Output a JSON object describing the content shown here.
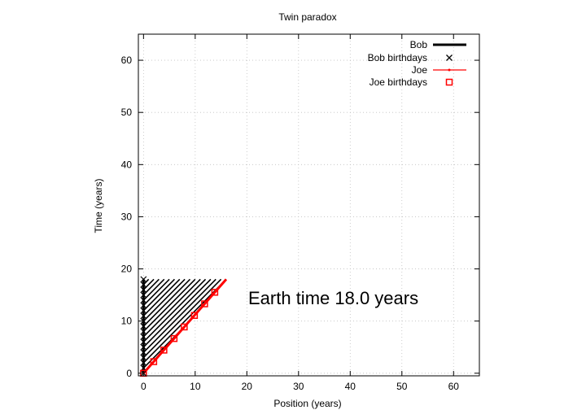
{
  "chart_data": {
    "type": "line",
    "title": "Twin paradox",
    "xlabel": "Position (years)",
    "ylabel": "Time (years)",
    "xlim": [
      -1,
      65
    ],
    "ylim": [
      -0.5,
      65
    ],
    "xticks": [
      0,
      10,
      20,
      30,
      40,
      50,
      60
    ],
    "yticks": [
      0,
      10,
      20,
      30,
      40,
      50,
      60
    ],
    "grid": true,
    "legend_position": "top-right",
    "annotation": "Earth time 18.0 years",
    "colors": {
      "bob": "#000000",
      "joe": "#ff0000",
      "grid": "#c0c0c0"
    },
    "series": [
      {
        "name": "Bob",
        "marker": "line",
        "x": [
          0,
          0
        ],
        "y": [
          0,
          18
        ]
      },
      {
        "name": "Bob birthdays",
        "marker": "cross",
        "x": [
          0,
          0,
          0,
          0,
          0,
          0,
          0,
          0,
          0,
          0,
          0,
          0,
          0,
          0,
          0,
          0,
          0,
          0,
          0
        ],
        "y": [
          0,
          1,
          2,
          3,
          4,
          5,
          6,
          7,
          8,
          9,
          10,
          11,
          12,
          13,
          14,
          15,
          16,
          17,
          18
        ]
      },
      {
        "name": "Joe",
        "marker": "line-dot",
        "x": [
          0,
          16
        ],
        "y": [
          0,
          18
        ]
      },
      {
        "name": "Joe birthdays",
        "marker": "square",
        "x": [
          0,
          1.97,
          3.94,
          5.91,
          7.88,
          9.85,
          11.82,
          13.79
        ],
        "y": [
          0,
          2.22,
          4.43,
          6.65,
          8.87,
          11.08,
          13.3,
          15.52
        ]
      }
    ],
    "world_lines_spacing": 1
  }
}
